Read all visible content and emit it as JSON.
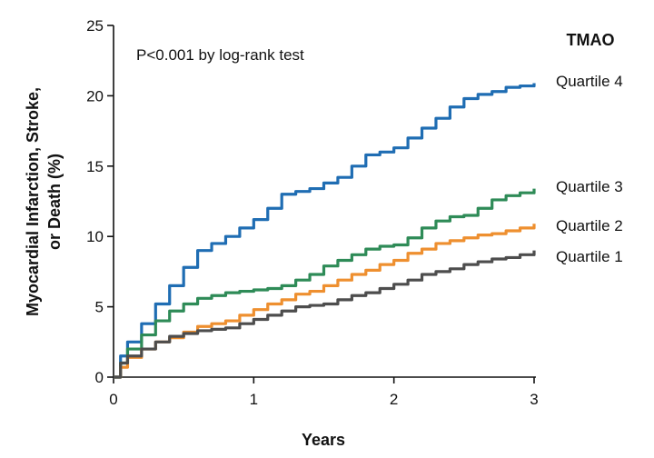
{
  "chart_data": {
    "type": "line",
    "annotation": "P<0.001 by log-rank test",
    "legend_title": "TMAO",
    "xlabel": "Years",
    "ylabel_lines": [
      "Myocardial Infarction, Stroke,",
      "or Death (%)"
    ],
    "xlim": [
      0,
      3
    ],
    "ylim": [
      0,
      25
    ],
    "x_ticks": [
      0,
      1,
      2,
      3
    ],
    "y_ticks": [
      0,
      5,
      10,
      15,
      20,
      25
    ],
    "grid": false,
    "series": [
      {
        "name": "Quartile 4",
        "color": "#1f6db3",
        "points": [
          [
            0,
            0
          ],
          [
            0.05,
            1.5
          ],
          [
            0.1,
            2.5
          ],
          [
            0.2,
            3.8
          ],
          [
            0.3,
            5.2
          ],
          [
            0.4,
            6.5
          ],
          [
            0.5,
            7.8
          ],
          [
            0.6,
            9.0
          ],
          [
            0.7,
            9.5
          ],
          [
            0.8,
            10.0
          ],
          [
            0.9,
            10.6
          ],
          [
            1.0,
            11.2
          ],
          [
            1.1,
            12.0
          ],
          [
            1.2,
            13.0
          ],
          [
            1.3,
            13.2
          ],
          [
            1.4,
            13.4
          ],
          [
            1.5,
            13.8
          ],
          [
            1.6,
            14.2
          ],
          [
            1.7,
            15.0
          ],
          [
            1.8,
            15.8
          ],
          [
            1.9,
            16.0
          ],
          [
            2.0,
            16.3
          ],
          [
            2.1,
            17.0
          ],
          [
            2.2,
            17.7
          ],
          [
            2.3,
            18.4
          ],
          [
            2.4,
            19.2
          ],
          [
            2.5,
            19.8
          ],
          [
            2.6,
            20.1
          ],
          [
            2.7,
            20.3
          ],
          [
            2.8,
            20.6
          ],
          [
            2.9,
            20.7
          ],
          [
            3.0,
            20.9
          ]
        ]
      },
      {
        "name": "Quartile 3",
        "color": "#2e8b57",
        "points": [
          [
            0,
            0
          ],
          [
            0.05,
            1.0
          ],
          [
            0.1,
            2.0
          ],
          [
            0.2,
            3.0
          ],
          [
            0.3,
            4.0
          ],
          [
            0.4,
            4.7
          ],
          [
            0.5,
            5.2
          ],
          [
            0.6,
            5.6
          ],
          [
            0.7,
            5.8
          ],
          [
            0.8,
            6.0
          ],
          [
            0.9,
            6.1
          ],
          [
            1.0,
            6.2
          ],
          [
            1.1,
            6.3
          ],
          [
            1.2,
            6.5
          ],
          [
            1.3,
            6.9
          ],
          [
            1.4,
            7.3
          ],
          [
            1.5,
            7.9
          ],
          [
            1.6,
            8.3
          ],
          [
            1.7,
            8.7
          ],
          [
            1.8,
            9.1
          ],
          [
            1.9,
            9.3
          ],
          [
            2.0,
            9.4
          ],
          [
            2.1,
            9.9
          ],
          [
            2.2,
            10.6
          ],
          [
            2.3,
            11.1
          ],
          [
            2.4,
            11.4
          ],
          [
            2.5,
            11.5
          ],
          [
            2.6,
            12.0
          ],
          [
            2.7,
            12.6
          ],
          [
            2.8,
            12.9
          ],
          [
            2.9,
            13.1
          ],
          [
            3.0,
            13.4
          ]
        ]
      },
      {
        "name": "Quartile 2",
        "color": "#ee8f2f",
        "points": [
          [
            0,
            0
          ],
          [
            0.05,
            0.7
          ],
          [
            0.1,
            1.4
          ],
          [
            0.2,
            2.0
          ],
          [
            0.3,
            2.5
          ],
          [
            0.4,
            2.8
          ],
          [
            0.5,
            3.2
          ],
          [
            0.6,
            3.6
          ],
          [
            0.7,
            3.8
          ],
          [
            0.8,
            4.0
          ],
          [
            0.9,
            4.4
          ],
          [
            1.0,
            4.8
          ],
          [
            1.1,
            5.2
          ],
          [
            1.2,
            5.5
          ],
          [
            1.3,
            5.9
          ],
          [
            1.4,
            6.1
          ],
          [
            1.5,
            6.5
          ],
          [
            1.6,
            6.9
          ],
          [
            1.7,
            7.3
          ],
          [
            1.8,
            7.6
          ],
          [
            1.9,
            8.0
          ],
          [
            2.0,
            8.3
          ],
          [
            2.1,
            8.8
          ],
          [
            2.2,
            9.1
          ],
          [
            2.3,
            9.5
          ],
          [
            2.4,
            9.7
          ],
          [
            2.5,
            9.9
          ],
          [
            2.6,
            10.1
          ],
          [
            2.7,
            10.2
          ],
          [
            2.8,
            10.4
          ],
          [
            2.9,
            10.6
          ],
          [
            3.0,
            10.9
          ]
        ]
      },
      {
        "name": "Quartile 1",
        "color": "#4d4d4d",
        "points": [
          [
            0,
            0
          ],
          [
            0.05,
            1.0
          ],
          [
            0.1,
            1.5
          ],
          [
            0.2,
            2.0
          ],
          [
            0.3,
            2.5
          ],
          [
            0.4,
            2.9
          ],
          [
            0.5,
            3.1
          ],
          [
            0.6,
            3.3
          ],
          [
            0.7,
            3.4
          ],
          [
            0.8,
            3.5
          ],
          [
            0.9,
            3.8
          ],
          [
            1.0,
            4.1
          ],
          [
            1.1,
            4.4
          ],
          [
            1.2,
            4.7
          ],
          [
            1.3,
            5.0
          ],
          [
            1.4,
            5.1
          ],
          [
            1.5,
            5.2
          ],
          [
            1.6,
            5.5
          ],
          [
            1.7,
            5.8
          ],
          [
            1.8,
            6.0
          ],
          [
            1.9,
            6.3
          ],
          [
            2.0,
            6.6
          ],
          [
            2.1,
            6.9
          ],
          [
            2.2,
            7.3
          ],
          [
            2.3,
            7.5
          ],
          [
            2.4,
            7.7
          ],
          [
            2.5,
            8.0
          ],
          [
            2.6,
            8.2
          ],
          [
            2.7,
            8.4
          ],
          [
            2.8,
            8.5
          ],
          [
            2.9,
            8.7
          ],
          [
            3.0,
            9.0
          ]
        ]
      }
    ]
  }
}
